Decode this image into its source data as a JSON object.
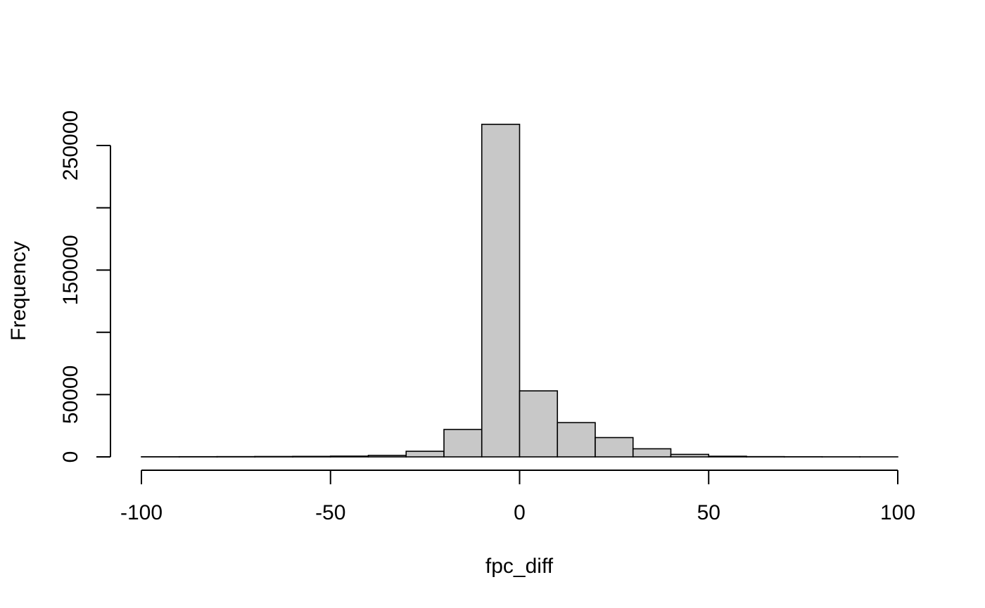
{
  "chart_data": {
    "type": "bar",
    "title": "",
    "xlabel": "fpc_diff",
    "ylabel": "Frequency",
    "bin_edges": [
      -100,
      -90,
      -80,
      -70,
      -60,
      -50,
      -40,
      -30,
      -20,
      -10,
      0,
      10,
      20,
      30,
      40,
      50,
      60,
      70,
      80,
      90,
      100
    ],
    "values": [
      100,
      150,
      200,
      300,
      400,
      600,
      1200,
      4500,
      22000,
      267000,
      53000,
      27500,
      15500,
      6500,
      2000,
      500,
      200,
      100,
      60,
      40
    ],
    "xlim": [
      -100,
      100
    ],
    "ylim": [
      0,
      270000
    ],
    "x_ticks": [
      -100,
      -50,
      0,
      50,
      100
    ],
    "x_tick_labels": [
      "-100",
      "-50",
      "0",
      "50",
      "100"
    ],
    "y_ticks": [
      0,
      50000,
      100000,
      150000,
      200000,
      250000
    ],
    "y_tick_labels": [
      "0",
      "50000",
      "",
      "150000",
      "",
      "250000"
    ],
    "bar_fill": "#c8c8c8",
    "bar_stroke": "#000000",
    "grid": false,
    "legend": "none"
  }
}
